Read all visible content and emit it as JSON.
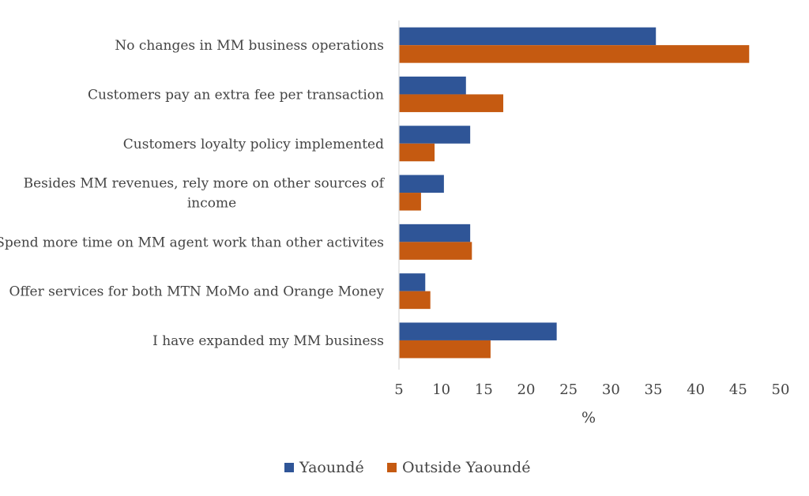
{
  "chart_data": {
    "type": "bar",
    "orientation": "horizontal",
    "categories": [
      [
        "No changes in MM business operations"
      ],
      [
        "Customers pay an extra fee per transaction"
      ],
      [
        "Customers loyalty policy implemented"
      ],
      [
        "Besides MM revenues, rely more on other sources of",
        "income"
      ],
      [
        "Spend more time on MM agent work than other activites"
      ],
      [
        "Offer services for both MTN MoMo and Orange Money"
      ],
      [
        "I have expanded my MM business"
      ]
    ],
    "series": [
      {
        "name": "Yaoundé",
        "color": "#2F5597",
        "values": [
          35.3,
          12.9,
          13.4,
          10.3,
          13.4,
          8.1,
          23.6
        ]
      },
      {
        "name": "Outside Yaoundé",
        "color": "#C55A11",
        "values": [
          46.3,
          17.3,
          9.2,
          7.6,
          13.6,
          8.7,
          15.8
        ]
      }
    ],
    "xlabel": "%",
    "xlim": [
      5,
      50
    ],
    "xticks": [
      "5",
      "10",
      "15",
      "20",
      "25",
      "30",
      "35",
      "40",
      "45",
      "50"
    ],
    "grid": false,
    "legend_position": "bottom"
  }
}
